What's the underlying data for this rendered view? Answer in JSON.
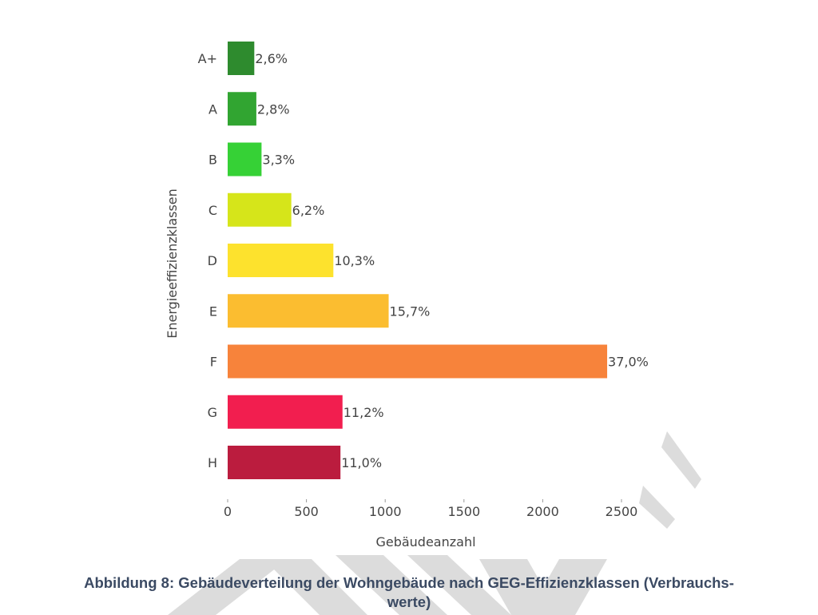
{
  "chart_data": {
    "type": "bar",
    "orientation": "horizontal",
    "categories": [
      "A+",
      "A",
      "B",
      "C",
      "D",
      "E",
      "F",
      "G",
      "H"
    ],
    "values": [
      169,
      182,
      215,
      404,
      671,
      1022,
      2409,
      729,
      716
    ],
    "data_labels": [
      "2,6%",
      "2,8%",
      "3,3%",
      "6,2%",
      "10,3%",
      "15,7%",
      "37,0%",
      "11,2%",
      "11,0%"
    ],
    "colors": [
      "#2e8b2e",
      "#31a531",
      "#36d136",
      "#d6e51a",
      "#fde22d",
      "#fbbd30",
      "#f7833b",
      "#f21e4f",
      "#bb1c3e"
    ],
    "xlabel": "Gebäudeanzahl",
    "ylabel": "Energieeffizienzklassen",
    "xlim": [
      0,
      2500
    ],
    "xticks": [
      0,
      500,
      1000,
      1500,
      2000,
      2500
    ],
    "grid": false,
    "legend": "none"
  },
  "caption": {
    "line1": "Abbildung 8: Gebäudeverteilung der Wohngebäude nach GEG-Effizienzklassen (Verbrauchs-",
    "line2": "werte)"
  }
}
